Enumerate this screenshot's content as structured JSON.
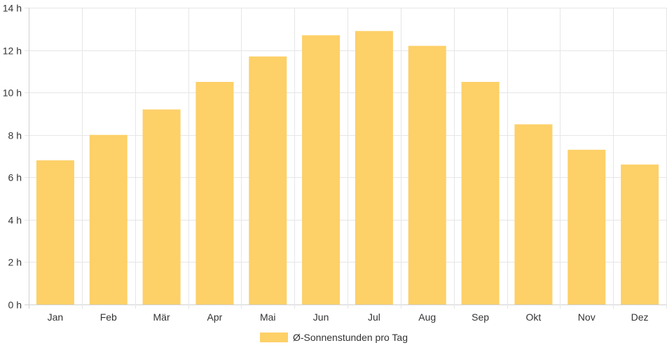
{
  "chart_data": {
    "type": "bar",
    "categories": [
      "Jan",
      "Feb",
      "Mär",
      "Apr",
      "Mai",
      "Jun",
      "Jul",
      "Aug",
      "Sep",
      "Okt",
      "Nov",
      "Dez"
    ],
    "series": [
      {
        "name": "Ø-Sonnenstunden pro Tag",
        "values": [
          6.8,
          8.0,
          9.2,
          10.5,
          11.7,
          12.7,
          12.9,
          12.2,
          10.5,
          8.5,
          7.3,
          6.6
        ],
        "color": "#FDD068"
      }
    ],
    "y_ticks": [
      "0 h",
      "2 h",
      "4 h",
      "6 h",
      "8 h",
      "10 h",
      "12 h",
      "14 h"
    ],
    "ylim": [
      0,
      14
    ],
    "grid": true,
    "legend_position": "bottom",
    "title": "",
    "xlabel": "",
    "ylabel": ""
  }
}
